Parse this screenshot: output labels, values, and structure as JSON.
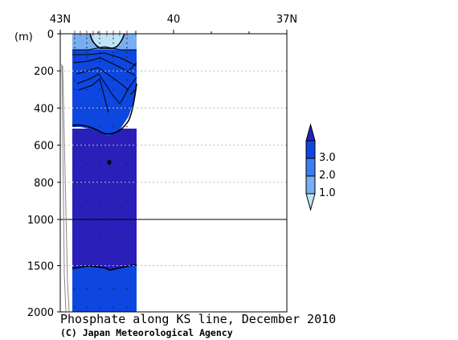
{
  "chart_data": {
    "type": "heatmap",
    "title": "Phosphate along KS line, December 2010",
    "credit": "(C) Japan Meteorological Agency",
    "ylabel": "(m)",
    "x_ticks": [
      "43N",
      "40",
      "37N"
    ],
    "x_tick_values": [
      43,
      40,
      37
    ],
    "xlim": [
      43,
      37
    ],
    "y_ticks": [
      "0",
      "200",
      "400",
      "600",
      "800",
      "1000",
      "1500",
      "2000"
    ],
    "y_tick_values": [
      0,
      200,
      400,
      600,
      800,
      1000,
      1500,
      2000
    ],
    "ylim": [
      0,
      2000
    ],
    "y_scale": "piecewise linear, 0-1000 m and 1000-2000 m halves",
    "data_coverage_latitude": [
      42.6,
      41.5
    ],
    "colorbar": {
      "levels": [
        "3.0",
        "2.0",
        "1.0"
      ],
      "level_values": [
        3.0,
        2.0,
        1.0
      ],
      "colors": [
        "#2a1fb8",
        "#0d47e0",
        "#3c7ef2",
        "#78aef2",
        "#bfe4f6"
      ]
    },
    "contours": [
      {
        "level": 2.0,
        "depth_profile": [
          [
            42.58,
            1540
          ],
          [
            42.3,
            1530
          ],
          [
            42.0,
            1550
          ],
          [
            41.52,
            1500
          ]
        ]
      },
      {
        "level": 3.0,
        "depth_profile": [
          [
            42.58,
            490
          ],
          [
            42.2,
            510
          ],
          [
            41.95,
            545
          ],
          [
            41.75,
            500
          ],
          [
            41.52,
            270
          ]
        ]
      },
      {
        "level": 1.0,
        "depth_profile": [
          [
            42.35,
            0
          ],
          [
            42.3,
            60
          ],
          [
            42.1,
            70
          ],
          [
            41.85,
            60
          ],
          [
            41.8,
            0
          ]
        ]
      }
    ]
  },
  "colors": {
    "background": "#ffffff",
    "axis": "#000000",
    "grid": "#bbbbbb"
  }
}
